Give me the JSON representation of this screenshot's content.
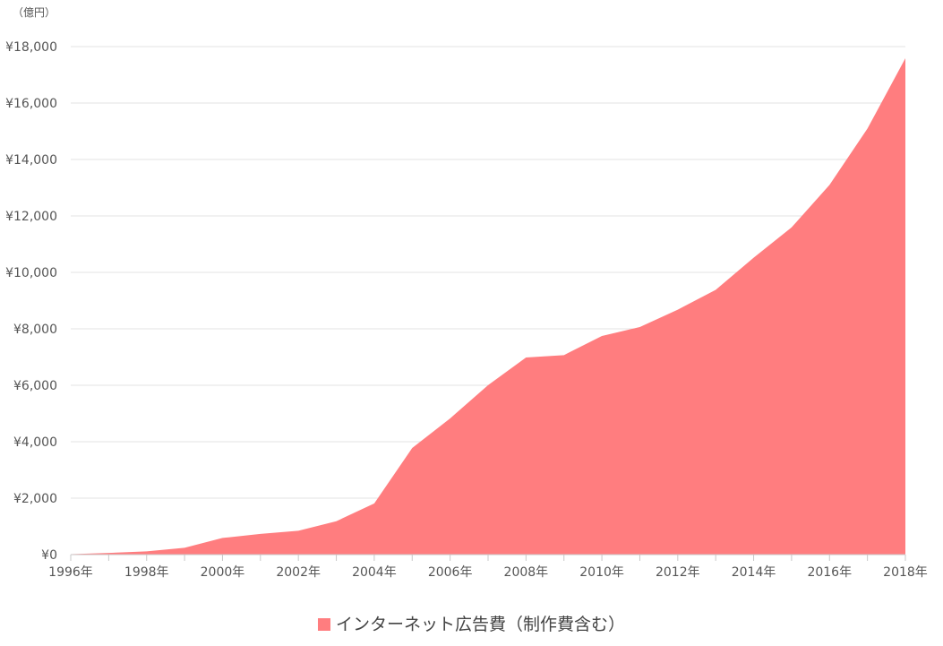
{
  "chart_data": {
    "type": "area",
    "unit_label": "（億円）",
    "x": [
      1996,
      1997,
      1998,
      1999,
      2000,
      2001,
      2002,
      2003,
      2004,
      2005,
      2006,
      2007,
      2008,
      2009,
      2010,
      2011,
      2012,
      2013,
      2014,
      2015,
      2016,
      2017,
      2018
    ],
    "x_tick_labels": [
      "1996年",
      "1998年",
      "2000年",
      "2002年",
      "2004年",
      "2006年",
      "2008年",
      "2010年",
      "2012年",
      "2014年",
      "2016年",
      "2018年"
    ],
    "y_tick_values": [
      0,
      2000,
      4000,
      6000,
      8000,
      10000,
      12000,
      14000,
      16000,
      18000
    ],
    "y_tick_labels": [
      "¥0",
      "¥2,000",
      "¥4,000",
      "¥6,000",
      "¥8,000",
      "¥10,000",
      "¥12,000",
      "¥14,000",
      "¥16,000",
      "¥18,000"
    ],
    "ylim": [
      0,
      18000
    ],
    "grid": true,
    "legend_placement": "bottom-center",
    "series": [
      {
        "name": "インターネット広告費（制作費含む）",
        "color": "#ff7d7f",
        "values": [
          16,
          60,
          114,
          241,
          590,
          735,
          845,
          1183,
          1814,
          3777,
          4826,
          6003,
          6983,
          7069,
          7747,
          8062,
          8680,
          9381,
          10519,
          11594,
          13100,
          15094,
          17589
        ]
      }
    ]
  }
}
